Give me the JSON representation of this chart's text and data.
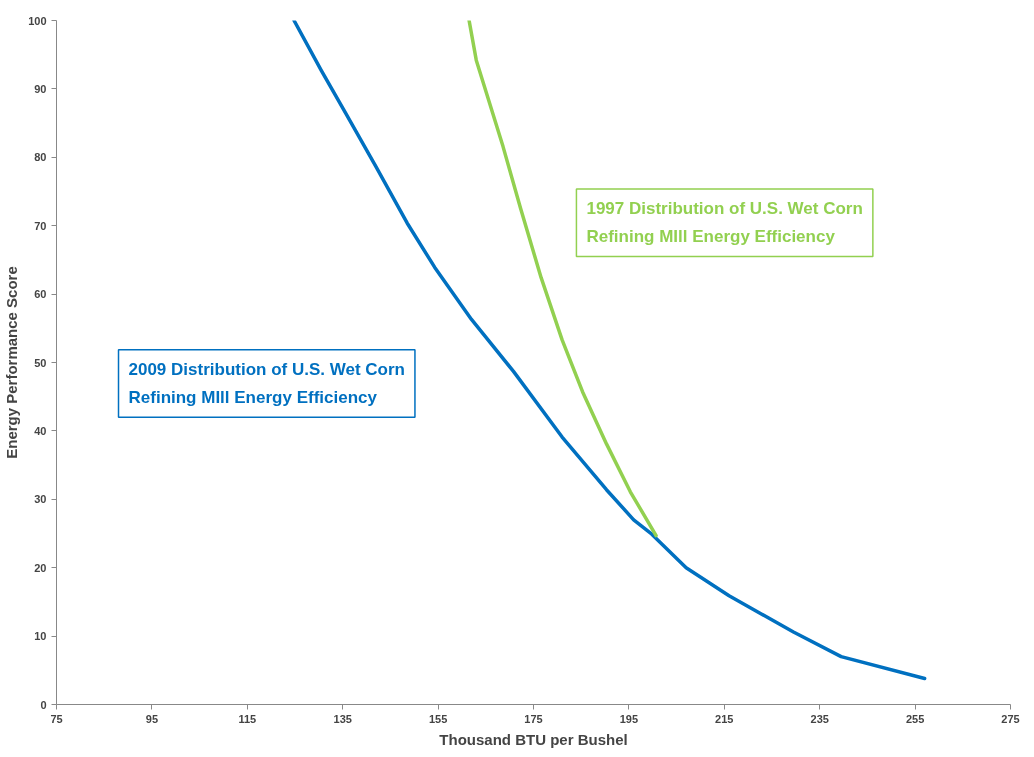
{
  "chart_data": {
    "type": "line",
    "xlabel": "Thousand BTU per Bushel",
    "ylabel": "Energy Performance Score",
    "xlim": [
      75,
      275
    ],
    "ylim": [
      0,
      100
    ],
    "xticks": [
      75,
      95,
      115,
      135,
      155,
      175,
      195,
      215,
      235,
      255,
      275
    ],
    "yticks": [
      0,
      10,
      20,
      30,
      40,
      50,
      60,
      70,
      80,
      90,
      100
    ],
    "grid": false,
    "marker": "none",
    "line_style": "solid",
    "series": [
      {
        "name": "2009 Distribution of U.S. Wet Corn\nRefining MIll Energy Efficiency",
        "color": "#0070c0",
        "x": [
          124.8,
          130.5,
          135.5,
          142,
          148.5,
          154.3,
          162,
          170.8,
          181,
          190.3,
          196,
          199.8,
          207,
          216,
          229.5,
          239.5,
          257
        ],
        "values": [
          100,
          92.7,
          86.6,
          78.6,
          70.4,
          63.9,
          56.3,
          48.7,
          39.1,
          31.4,
          27,
          24.9,
          20,
          15.9,
          10.6,
          7,
          3.8
        ]
      },
      {
        "name": "1997 Distribution of U.S. Wet Corn\nRefining MIll Energy Efficiency",
        "color": "#92d050",
        "x": [
          161.5,
          163,
          168.6,
          172.3,
          176.6,
          181,
          185.3,
          190.3,
          195.3,
          200.7
        ],
        "values": [
          100,
          94.2,
          81.6,
          72.5,
          62.4,
          53.3,
          45.7,
          38.1,
          31.1,
          24.7
        ]
      }
    ]
  }
}
